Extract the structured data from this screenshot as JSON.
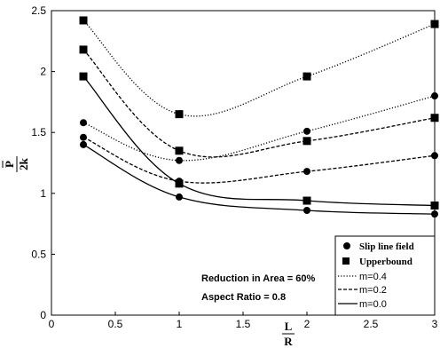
{
  "chart_data": {
    "type": "line",
    "xlabel": "L",
    "xlabel_denominator": "R",
    "ylabel": "P",
    "ylabel_denominator": "2k",
    "xlim": [
      0,
      3
    ],
    "ylim": [
      0,
      2.5
    ],
    "xticks": [
      "0",
      "0.5",
      "1",
      "1.5",
      "2",
      "2.5",
      "3"
    ],
    "yticks": [
      "0",
      "0.5",
      "1",
      "1.5",
      "2",
      "2.5"
    ],
    "grid": false,
    "legend_position": "bottom-right",
    "legend": {
      "marker_entries": [
        {
          "label": "Slip line field",
          "marker": "circle"
        },
        {
          "label": "Upperbound",
          "marker": "square"
        }
      ],
      "line_entries": [
        {
          "label": "m=0.4",
          "dash": "dotted"
        },
        {
          "label": "m=0.2",
          "dash": "dashed"
        },
        {
          "label": "m=0.0",
          "dash": "solid"
        }
      ]
    },
    "annotations": [
      "Reduction in Area = 60%",
      "Aspect Ratio = 0.8"
    ],
    "series": [
      {
        "method": "Slip line field",
        "m": "m=0.4",
        "marker": "circle",
        "dash": "dotted",
        "x": [
          0.25,
          1,
          2,
          3
        ],
        "y": [
          1.58,
          1.27,
          1.51,
          1.8
        ]
      },
      {
        "method": "Slip line field",
        "m": "m=0.2",
        "marker": "circle",
        "dash": "dashed",
        "x": [
          0.25,
          1,
          2,
          3
        ],
        "y": [
          1.46,
          1.1,
          1.18,
          1.31
        ]
      },
      {
        "method": "Slip line field",
        "m": "m=0.0",
        "marker": "circle",
        "dash": "solid",
        "x": [
          0.25,
          1,
          2,
          3
        ],
        "y": [
          1.4,
          0.97,
          0.86,
          0.83
        ]
      },
      {
        "method": "Upperbound",
        "m": "m=0.4",
        "marker": "square",
        "dash": "dotted",
        "x": [
          0.25,
          1,
          2,
          3
        ],
        "y": [
          2.42,
          1.65,
          1.96,
          2.39
        ]
      },
      {
        "method": "Upperbound",
        "m": "m=0.2",
        "marker": "square",
        "dash": "dashed",
        "x": [
          0.25,
          1,
          2,
          3
        ],
        "y": [
          2.18,
          1.35,
          1.43,
          1.62
        ]
      },
      {
        "method": "Upperbound",
        "m": "m=0.0",
        "marker": "square",
        "dash": "solid",
        "x": [
          0.25,
          1,
          2,
          3
        ],
        "y": [
          1.96,
          1.08,
          0.94,
          0.9
        ]
      }
    ]
  }
}
